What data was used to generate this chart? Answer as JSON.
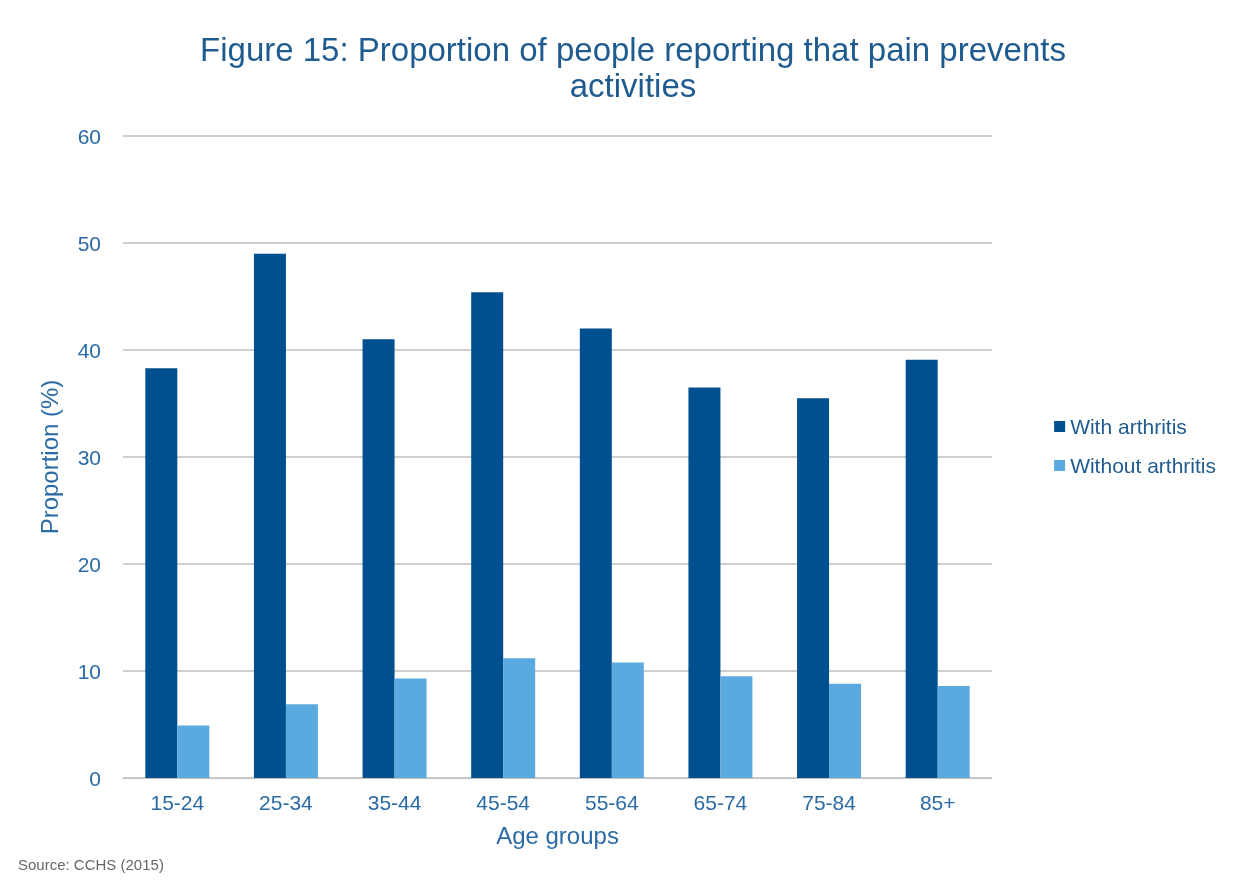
{
  "chart_data": {
    "type": "bar",
    "title": "Figure 15: Proportion of people reporting that pain prevents\nactivities",
    "xlabel": "Age groups",
    "ylabel": "Proportion (%)",
    "categories": [
      "15-24",
      "25-34",
      "35-44",
      "45-54",
      "55-64",
      "65-74",
      "75-84",
      "85+"
    ],
    "series": [
      {
        "name": "With arthritis",
        "color": "#004f8e",
        "values": [
          38.3,
          49.0,
          41.0,
          45.4,
          42.0,
          36.5,
          35.5,
          39.1
        ]
      },
      {
        "name": "Without arthritis",
        "color": "#5aa9df",
        "values": [
          4.9,
          6.9,
          9.3,
          11.2,
          10.8,
          9.5,
          8.8,
          8.6
        ]
      }
    ],
    "ylim": [
      0,
      60
    ],
    "yticks": [
      0,
      10,
      20,
      30,
      40,
      50,
      60
    ],
    "grid": "y",
    "legend": "right",
    "annotations": [
      "Source: CCHS (2015)"
    ]
  }
}
